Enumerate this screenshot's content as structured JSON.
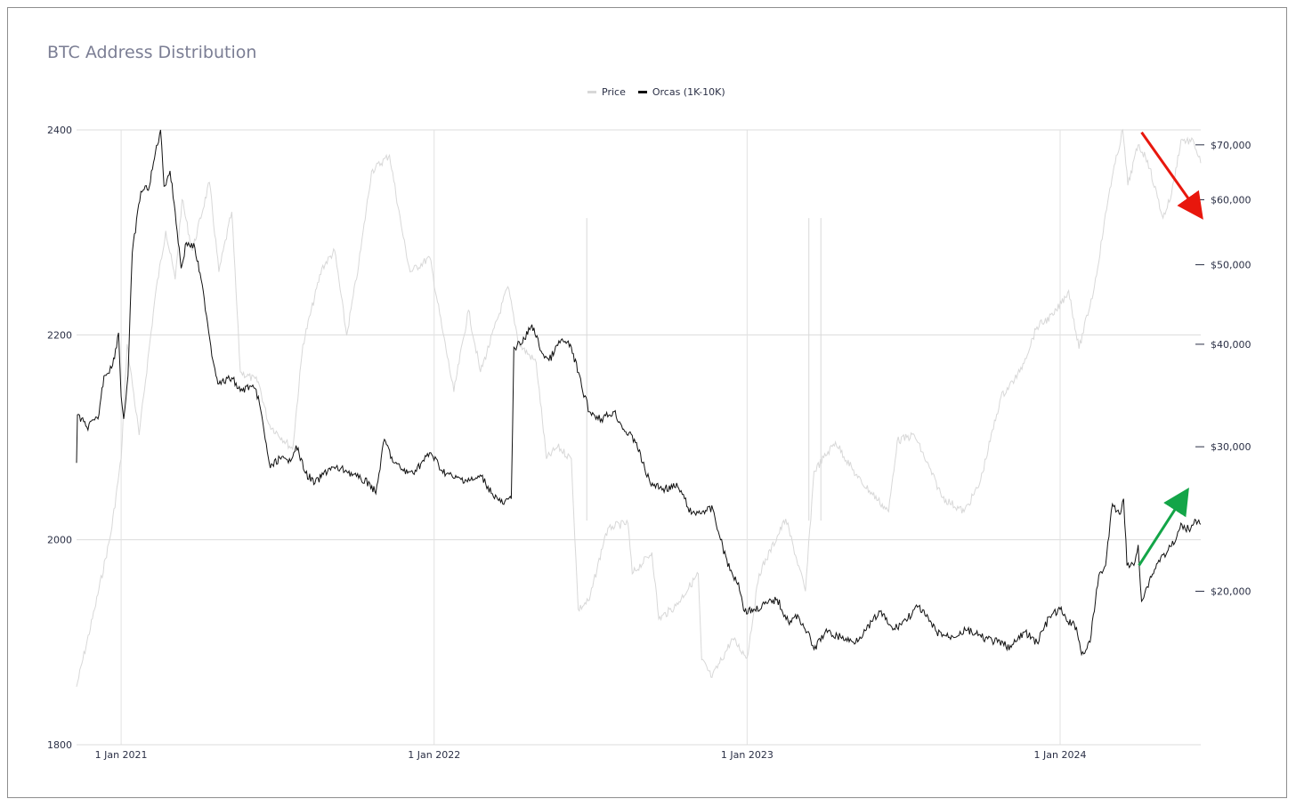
{
  "chart_data": {
    "type": "line",
    "title": "BTC Address Distribution",
    "x_ticks": [
      "1 Jan 2021",
      "1 Jan 2022",
      "1 Jan 2023",
      "1 Jan 2024"
    ],
    "xlim": [
      "2020-11-10",
      "2024-06-13"
    ],
    "y_left": {
      "ticks": [
        "1800",
        "2000",
        "2200",
        "2400"
      ],
      "range": [
        1800,
        2400
      ]
    },
    "y_right": {
      "ticks": [
        "$20,000",
        "$30,000",
        "$40,000",
        "$50,000",
        "$60,000",
        "$70,000"
      ],
      "scale": "log",
      "range": [
        13000,
        73000
      ]
    },
    "grid": true,
    "legend_placement": "top-center",
    "series": [
      {
        "name": "Price",
        "axis": "right",
        "color": "#d8d8d8",
        "points": [
          [
            "2020-11-10",
            15300
          ],
          [
            "2020-12-01",
            19000
          ],
          [
            "2020-12-20",
            23500
          ],
          [
            "2021-01-01",
            29000
          ],
          [
            "2021-01-08",
            40000
          ],
          [
            "2021-01-22",
            31000
          ],
          [
            "2021-02-10",
            46000
          ],
          [
            "2021-02-22",
            55000
          ],
          [
            "2021-03-05",
            48000
          ],
          [
            "2021-03-13",
            60000
          ],
          [
            "2021-03-25",
            52000
          ],
          [
            "2021-04-14",
            63000
          ],
          [
            "2021-04-25",
            49000
          ],
          [
            "2021-05-10",
            58000
          ],
          [
            "2021-05-20",
            37000
          ],
          [
            "2021-06-10",
            36000
          ],
          [
            "2021-06-22",
            32000
          ],
          [
            "2021-07-20",
            29800
          ],
          [
            "2021-08-01",
            40000
          ],
          [
            "2021-08-23",
            49500
          ],
          [
            "2021-09-07",
            52000
          ],
          [
            "2021-09-21",
            41000
          ],
          [
            "2021-10-05",
            50000
          ],
          [
            "2021-10-20",
            65000
          ],
          [
            "2021-11-10",
            68000
          ],
          [
            "2021-11-26",
            54000
          ],
          [
            "2021-12-04",
            49000
          ],
          [
            "2021-12-27",
            51000
          ],
          [
            "2022-01-10",
            42000
          ],
          [
            "2022-01-24",
            35000
          ],
          [
            "2022-02-10",
            44000
          ],
          [
            "2022-02-24",
            37000
          ],
          [
            "2022-03-28",
            47000
          ],
          [
            "2022-04-10",
            40000
          ],
          [
            "2022-04-30",
            38000
          ],
          [
            "2022-05-12",
            29000
          ],
          [
            "2022-05-25",
            30000
          ],
          [
            "2022-06-10",
            29000
          ],
          [
            "2022-06-18",
            19000
          ],
          [
            "2022-07-01",
            19500
          ],
          [
            "2022-07-20",
            23500
          ],
          [
            "2022-07-28",
            24000
          ],
          [
            "2022-08-15",
            24200
          ],
          [
            "2022-08-20",
            21000
          ],
          [
            "2022-09-12",
            22300
          ],
          [
            "2022-09-20",
            18500
          ],
          [
            "2022-10-10",
            19200
          ],
          [
            "2022-11-05",
            21000
          ],
          [
            "2022-11-09",
            16500
          ],
          [
            "2022-11-21",
            15700
          ],
          [
            "2022-12-15",
            17500
          ],
          [
            "2023-01-01",
            16600
          ],
          [
            "2023-01-15",
            21000
          ],
          [
            "2023-02-15",
            24500
          ],
          [
            "2023-03-10",
            20000
          ],
          [
            "2023-03-20",
            28000
          ],
          [
            "2023-04-14",
            30400
          ],
          [
            "2023-05-10",
            27500
          ],
          [
            "2023-06-15",
            25000
          ],
          [
            "2023-06-25",
            30500
          ],
          [
            "2023-07-15",
            31000
          ],
          [
            "2023-08-17",
            26000
          ],
          [
            "2023-09-11",
            25000
          ],
          [
            "2023-09-29",
            27000
          ],
          [
            "2023-10-24",
            34500
          ],
          [
            "2023-11-15",
            37000
          ],
          [
            "2023-12-05",
            42000
          ],
          [
            "2023-12-25",
            43500
          ],
          [
            "2024-01-11",
            46500
          ],
          [
            "2024-01-23",
            39500
          ],
          [
            "2024-02-10",
            47000
          ],
          [
            "2024-02-28",
            62000
          ],
          [
            "2024-03-14",
            73000
          ],
          [
            "2024-03-20",
            62500
          ],
          [
            "2024-04-01",
            70000
          ],
          [
            "2024-04-12",
            67000
          ],
          [
            "2024-04-30",
            57000
          ],
          [
            "2024-05-10",
            61000
          ],
          [
            "2024-05-21",
            71000
          ],
          [
            "2024-06-05",
            70500
          ],
          [
            "2024-06-13",
            66500
          ]
        ],
        "spikes": [
          [
            "2022-06-28",
            57000
          ],
          [
            "2023-03-14",
            57000
          ],
          [
            "2023-03-28",
            57000
          ]
        ]
      },
      {
        "name": "Orcas (1K-10K)",
        "axis": "left",
        "color": "#111111",
        "points": [
          [
            "2020-11-10",
            2075
          ],
          [
            "2020-11-11",
            2122
          ],
          [
            "2020-11-22",
            2110
          ],
          [
            "2020-12-05",
            2118
          ],
          [
            "2020-12-12",
            2160
          ],
          [
            "2020-12-22",
            2170
          ],
          [
            "2020-12-29",
            2202
          ],
          [
            "2021-01-01",
            2140
          ],
          [
            "2021-01-04",
            2118
          ],
          [
            "2021-01-09",
            2160
          ],
          [
            "2021-01-14",
            2280
          ],
          [
            "2021-01-24",
            2340
          ],
          [
            "2021-02-03",
            2345
          ],
          [
            "2021-02-10",
            2378
          ],
          [
            "2021-02-16",
            2400
          ],
          [
            "2021-02-20",
            2345
          ],
          [
            "2021-02-27",
            2360
          ],
          [
            "2021-03-05",
            2320
          ],
          [
            "2021-03-12",
            2265
          ],
          [
            "2021-03-18",
            2290
          ],
          [
            "2021-03-28",
            2285
          ],
          [
            "2021-04-08",
            2235
          ],
          [
            "2021-04-18",
            2175
          ],
          [
            "2021-04-25",
            2152
          ],
          [
            "2021-05-10",
            2158
          ],
          [
            "2021-05-20",
            2145
          ],
          [
            "2021-06-01",
            2150
          ],
          [
            "2021-06-10",
            2140
          ],
          [
            "2021-06-18",
            2098
          ],
          [
            "2021-06-24",
            2070
          ],
          [
            "2021-07-05",
            2080
          ],
          [
            "2021-07-15",
            2075
          ],
          [
            "2021-07-24",
            2092
          ],
          [
            "2021-08-04",
            2065
          ],
          [
            "2021-08-15",
            2055
          ],
          [
            "2021-09-01",
            2070
          ],
          [
            "2021-09-20",
            2068
          ],
          [
            "2021-10-05",
            2060
          ],
          [
            "2021-10-18",
            2055
          ],
          [
            "2021-10-25",
            2045
          ],
          [
            "2021-11-04",
            2098
          ],
          [
            "2021-11-15",
            2075
          ],
          [
            "2021-12-01",
            2065
          ],
          [
            "2021-12-10",
            2068
          ],
          [
            "2021-12-28",
            2085
          ],
          [
            "2022-01-10",
            2068
          ],
          [
            "2022-01-25",
            2060
          ],
          [
            "2022-02-15",
            2058
          ],
          [
            "2022-02-25",
            2062
          ],
          [
            "2022-03-10",
            2045
          ],
          [
            "2022-03-22",
            2035
          ],
          [
            "2022-04-01",
            2040
          ],
          [
            "2022-04-04",
            2188
          ],
          [
            "2022-04-14",
            2192
          ],
          [
            "2022-04-25",
            2210
          ],
          [
            "2022-05-07",
            2182
          ],
          [
            "2022-05-15",
            2175
          ],
          [
            "2022-05-29",
            2195
          ],
          [
            "2022-06-10",
            2188
          ],
          [
            "2022-06-22",
            2150
          ],
          [
            "2022-07-01",
            2125
          ],
          [
            "2022-07-15",
            2118
          ],
          [
            "2022-07-30",
            2125
          ],
          [
            "2022-08-10",
            2108
          ],
          [
            "2022-08-25",
            2095
          ],
          [
            "2022-09-01",
            2075
          ],
          [
            "2022-09-10",
            2055
          ],
          [
            "2022-09-25",
            2050
          ],
          [
            "2022-10-12",
            2052
          ],
          [
            "2022-10-20",
            2040
          ],
          [
            "2022-10-28",
            2025
          ],
          [
            "2022-11-10",
            2028
          ],
          [
            "2022-11-22",
            2030
          ],
          [
            "2022-12-01",
            2000
          ],
          [
            "2022-12-12",
            1970
          ],
          [
            "2022-12-22",
            1958
          ],
          [
            "2022-12-29",
            1930
          ],
          [
            "2023-01-10",
            1932
          ],
          [
            "2023-01-25",
            1938
          ],
          [
            "2023-02-05",
            1942
          ],
          [
            "2023-02-18",
            1920
          ],
          [
            "2023-03-02",
            1925
          ],
          [
            "2023-03-12",
            1910
          ],
          [
            "2023-03-20",
            1893
          ],
          [
            "2023-04-02",
            1910
          ],
          [
            "2023-04-20",
            1905
          ],
          [
            "2023-05-05",
            1900
          ],
          [
            "2023-05-20",
            1912
          ],
          [
            "2023-06-05",
            1930
          ],
          [
            "2023-06-20",
            1912
          ],
          [
            "2023-07-05",
            1922
          ],
          [
            "2023-07-20",
            1935
          ],
          [
            "2023-08-10",
            1910
          ],
          [
            "2023-08-25",
            1905
          ],
          [
            "2023-09-15",
            1912
          ],
          [
            "2023-10-01",
            1905
          ],
          [
            "2023-10-20",
            1900
          ],
          [
            "2023-11-05",
            1895
          ],
          [
            "2023-11-20",
            1910
          ],
          [
            "2023-12-05",
            1900
          ],
          [
            "2023-12-20",
            1925
          ],
          [
            "2024-01-01",
            1932
          ],
          [
            "2024-01-10",
            1920
          ],
          [
            "2024-01-20",
            1915
          ],
          [
            "2024-01-26",
            1888
          ],
          [
            "2024-02-05",
            1900
          ],
          [
            "2024-02-15",
            1965
          ],
          [
            "2024-02-23",
            1975
          ],
          [
            "2024-03-02",
            2035
          ],
          [
            "2024-03-10",
            2025
          ],
          [
            "2024-03-15",
            2040
          ],
          [
            "2024-03-19",
            1975
          ],
          [
            "2024-03-27",
            1975
          ],
          [
            "2024-04-01",
            1995
          ],
          [
            "2024-04-05",
            1940
          ],
          [
            "2024-04-14",
            1960
          ],
          [
            "2024-04-25",
            1980
          ],
          [
            "2024-05-06",
            1990
          ],
          [
            "2024-05-15",
            2000
          ],
          [
            "2024-05-22",
            2015
          ],
          [
            "2024-05-30",
            2010
          ],
          [
            "2024-06-06",
            2020
          ],
          [
            "2024-06-13",
            2015
          ]
        ]
      }
    ],
    "annotations": [
      {
        "type": "arrow",
        "color": "#e8170d",
        "from": [
          "2024-04-05",
          72500
        ],
        "to": [
          "2024-06-07",
          58500
        ],
        "axis": "right"
      },
      {
        "type": "arrow",
        "color": "#13a548",
        "from": [
          "2024-04-02",
          1975
        ],
        "to": [
          "2024-05-22",
          2040
        ],
        "axis": "left"
      }
    ]
  }
}
